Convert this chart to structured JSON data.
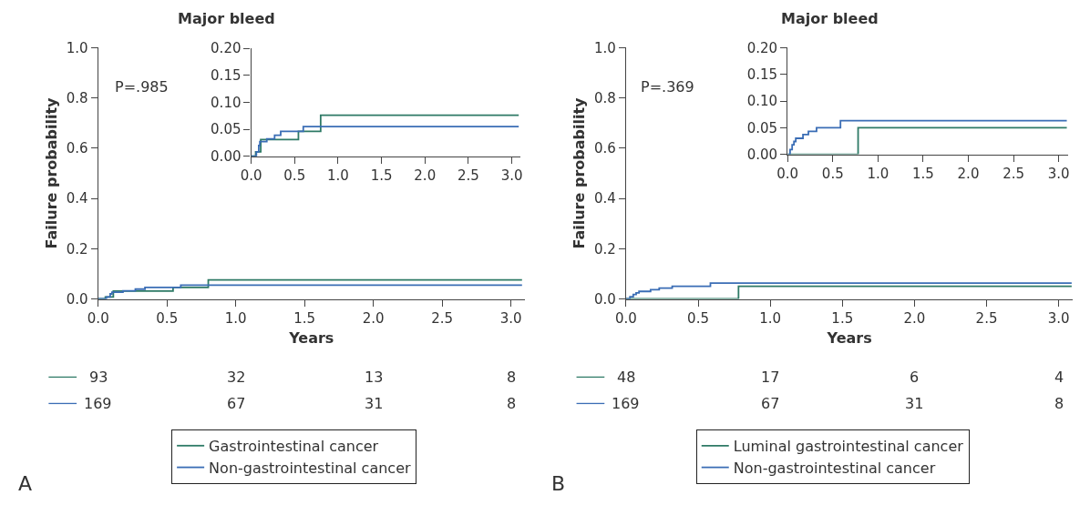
{
  "chart_data": [
    {
      "type": "step",
      "title": "Major bleed",
      "xlabel": "Years",
      "ylabel": "Failure probability",
      "legend": "bottom",
      "xlim": [
        0,
        3.1
      ],
      "xticks": [
        {
          "value": 0,
          "label": "0.0"
        },
        0.5,
        {
          "value": 1,
          "label": "1.0"
        },
        1.5,
        {
          "value": 2,
          "label": "2.0"
        },
        2.5,
        {
          "value": 3,
          "label": "3.0"
        }
      ],
      "ylim": [
        0,
        1
      ],
      "yticks": [
        {
          "value": 0,
          "label": "0.0"
        },
        0.2,
        0.4,
        0.6,
        0.8,
        {
          "value": 1,
          "label": "1.0"
        }
      ],
      "series": [
        {
          "name": "Gastrointestinal cancer",
          "color": "#2e7a66",
          "x": [
            0,
            0.052,
            0.11,
            0.544,
            0.8,
            3.08
          ],
          "values": [
            0,
            0.008,
            0.031,
            0.046,
            0.076,
            0.076
          ]
        },
        {
          "name": "Non-gastrointestinal cancer",
          "color": "#3a6db5",
          "x": [
            0,
            0.06,
            0.087,
            0.1,
            0.18,
            0.27,
            0.34,
            0.6,
            3.08
          ],
          "values": [
            0,
            0.008,
            0.02,
            0.027,
            0.032,
            0.039,
            0.046,
            0.055,
            0.055
          ]
        }
      ],
      "annotations": [
        "P=.985",
        "A",
        "93",
        "32",
        "13",
        "8",
        "169",
        "67",
        "31",
        "8"
      ]
    },
    {
      "type": "step",
      "xlim": [
        0,
        3.1
      ],
      "xticks": [
        {
          "value": 0,
          "label": "0.0"
        },
        0.5,
        {
          "value": 1,
          "label": "1.0"
        },
        1.5,
        {
          "value": 2,
          "label": "2.0"
        },
        2.5,
        {
          "value": 3,
          "label": "3.0"
        }
      ],
      "ylim": [
        0,
        0.2
      ],
      "yticks": [
        {
          "value": 0,
          "label": "0.00"
        },
        0.05,
        {
          "value": 0.1,
          "label": "0.10"
        },
        0.15,
        {
          "value": 0.2,
          "label": "0.20"
        }
      ],
      "series": [
        {
          "color": "#2e7a66",
          "x": [
            0,
            0.052,
            0.11,
            0.544,
            0.8,
            3.08
          ],
          "values": [
            0,
            0.008,
            0.031,
            0.046,
            0.076,
            0.076
          ]
        },
        {
          "color": "#3a6db5",
          "x": [
            0,
            0.06,
            0.087,
            0.1,
            0.18,
            0.27,
            0.34,
            0.6,
            3.08
          ],
          "values": [
            0,
            0.008,
            0.02,
            0.027,
            0.032,
            0.039,
            0.046,
            0.055,
            0.055
          ]
        }
      ]
    },
    {
      "type": "step",
      "title": "Major bleed",
      "xlabel": "Years",
      "ylabel": "Failure probability",
      "legend": "bottom",
      "xlim": [
        0,
        3.1
      ],
      "xticks": [
        {
          "value": 0,
          "label": "0.0"
        },
        0.5,
        {
          "value": 1,
          "label": "1.0"
        },
        1.5,
        {
          "value": 2,
          "label": "2.0"
        },
        2.5,
        {
          "value": 3,
          "label": "3.0"
        }
      ],
      "ylim": [
        0,
        1
      ],
      "yticks": [
        {
          "value": 0,
          "label": "0.0"
        },
        0.2,
        0.4,
        0.6,
        0.8,
        {
          "value": 1,
          "label": "1.0"
        }
      ],
      "series": [
        {
          "name": "Luminal gastrointestinal cancer",
          "color": "#2e7a66",
          "x": [
            0,
            0.4,
            0.78,
            3.09
          ],
          "values": [
            0,
            0,
            0.05,
            0.05
          ]
        },
        {
          "name": "Non-gastrointestinal cancer",
          "color": "#3a6db5",
          "x": [
            0,
            0.027,
            0.05,
            0.07,
            0.09,
            0.17,
            0.23,
            0.32,
            0.585,
            3.09
          ],
          "values": [
            0,
            0.009,
            0.018,
            0.024,
            0.03,
            0.037,
            0.043,
            0.05,
            0.063,
            0.063
          ]
        }
      ],
      "annotations": [
        "P=.369",
        "B",
        "48",
        "17",
        "6",
        "4",
        "169",
        "67",
        "31",
        "8"
      ]
    },
    {
      "type": "step",
      "xlim": [
        0,
        3.1
      ],
      "xticks": [
        {
          "value": 0,
          "label": "0.0"
        },
        0.5,
        {
          "value": 1,
          "label": "1.0"
        },
        1.5,
        {
          "value": 2,
          "label": "2.0"
        },
        2.5,
        {
          "value": 3,
          "label": "3.0"
        }
      ],
      "ylim": [
        0,
        0.2
      ],
      "yticks": [
        {
          "value": 0,
          "label": "0.00"
        },
        0.05,
        {
          "value": 0.1,
          "label": "0.10"
        },
        0.15,
        {
          "value": 0.2,
          "label": "0.20"
        }
      ],
      "series": [
        {
          "color": "#2e7a66",
          "x": [
            0,
            0.4,
            0.78,
            3.09
          ],
          "values": [
            0,
            0,
            0.05,
            0.05
          ]
        },
        {
          "color": "#3a6db5",
          "x": [
            0,
            0.027,
            0.05,
            0.07,
            0.09,
            0.17,
            0.23,
            0.32,
            0.585,
            3.09
          ],
          "values": [
            0,
            0.009,
            0.018,
            0.024,
            0.03,
            0.037,
            0.043,
            0.05,
            0.063,
            0.063
          ]
        }
      ]
    }
  ]
}
